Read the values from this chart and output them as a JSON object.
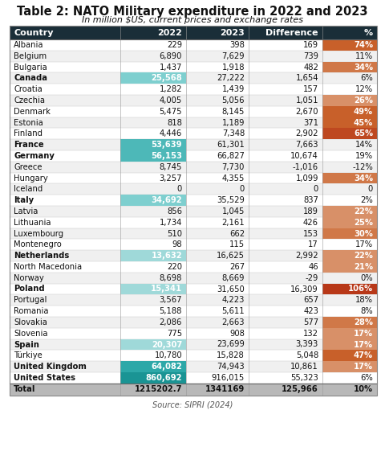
{
  "title": "Table 2: NATO Military expenditure in 2022 and 2023",
  "subtitle": "In million $US, current prices and exchange rates",
  "source": "Source: SIPRI (2024)",
  "columns": [
    "Country",
    "2022",
    "2023",
    "Difference",
    "%"
  ],
  "rows": [
    [
      "Albania",
      "229",
      "398",
      "169",
      "74%"
    ],
    [
      "Belgium",
      "6,890",
      "7,629",
      "739",
      "11%"
    ],
    [
      "Bulgaria",
      "1,437",
      "1,918",
      "482",
      "34%"
    ],
    [
      "Canada",
      "25,568",
      "27,222",
      "1,654",
      "6%"
    ],
    [
      "Croatia",
      "1,282",
      "1,439",
      "157",
      "12%"
    ],
    [
      "Czechia",
      "4,005",
      "5,056",
      "1,051",
      "26%"
    ],
    [
      "Denmark",
      "5,475",
      "8,145",
      "2,670",
      "49%"
    ],
    [
      "Estonia",
      "818",
      "1,189",
      "371",
      "45%"
    ],
    [
      "Finland",
      "4,446",
      "7,348",
      "2,902",
      "65%"
    ],
    [
      "France",
      "53,639",
      "61,301",
      "7,663",
      "14%"
    ],
    [
      "Germany",
      "56,153",
      "66,827",
      "10,674",
      "19%"
    ],
    [
      "Greece",
      "8,745",
      "7,730",
      "-1,016",
      "-12%"
    ],
    [
      "Hungary",
      "3,257",
      "4,355",
      "1,099",
      "34%"
    ],
    [
      "Iceland",
      "0",
      "0",
      "0",
      "0"
    ],
    [
      "Italy",
      "34,692",
      "35,529",
      "837",
      "2%"
    ],
    [
      "Latvia",
      "856",
      "1,045",
      "189",
      "22%"
    ],
    [
      "Lithuania",
      "1,734",
      "2,161",
      "426",
      "25%"
    ],
    [
      "Luxembourg",
      "510",
      "662",
      "153",
      "30%"
    ],
    [
      "Montenegro",
      "98",
      "115",
      "17",
      "17%"
    ],
    [
      "Netherlands",
      "13,632",
      "16,625",
      "2,992",
      "22%"
    ],
    [
      "North Macedonia",
      "220",
      "267",
      "46",
      "21%"
    ],
    [
      "Norway",
      "8,698",
      "8,669",
      "-29",
      "0%"
    ],
    [
      "Poland",
      "15,341",
      "31,650",
      "16,309",
      "106%"
    ],
    [
      "Portugal",
      "3,567",
      "4,223",
      "657",
      "18%"
    ],
    [
      "Romania",
      "5,188",
      "5,611",
      "423",
      "8%"
    ],
    [
      "Slovakia",
      "2,086",
      "2,663",
      "577",
      "28%"
    ],
    [
      "Slovenia",
      "775",
      "908",
      "132",
      "17%"
    ],
    [
      "Spain",
      "20,307",
      "23,699",
      "3,393",
      "17%"
    ],
    [
      "Türkiye",
      "10,780",
      "15,828",
      "5,048",
      "47%"
    ],
    [
      "United Kingdom",
      "64,082",
      "74,943",
      "10,861",
      "17%"
    ],
    [
      "United States",
      "860,692",
      "916,015",
      "55,323",
      "6%"
    ]
  ],
  "total_row": [
    "Total",
    "1215202.7",
    "1341169",
    "125,966",
    "10%"
  ],
  "highlight_2022": {
    "Canada": "#7ecfcf",
    "France": "#4db8b8",
    "Germany": "#4db8b8",
    "Italy": "#7ecfcf",
    "Netherlands": "#9fd9d9",
    "Poland": "#9fd9d9",
    "Spain": "#9fd9d9",
    "United Kingdom": "#2da8a8",
    "United States": "#1a9494"
  },
  "pct_color_map": {
    "Albania": "#c8602a",
    "Bulgaria": "#d07848",
    "Czechia": "#d89068",
    "Denmark": "#c8602a",
    "Estonia": "#c8602a",
    "Finland": "#be4820",
    "Hungary": "#d07848",
    "Latvia": "#d89068",
    "Lithuania": "#d89068",
    "Luxembourg": "#d07848",
    "Netherlands": "#d89068",
    "North Macedonia": "#d89068",
    "Poland": "#b83818",
    "Slovakia": "#d07848",
    "Slovenia": "#d89068",
    "Spain": "#d89068",
    "Türkiye": "#c8602a",
    "United Kingdom": "#d89068"
  },
  "header_bg": "#1a2e38",
  "total_bg": "#b8b8b8",
  "row_bg": "#ffffff",
  "alt_row_bg": "#f0f0f0"
}
